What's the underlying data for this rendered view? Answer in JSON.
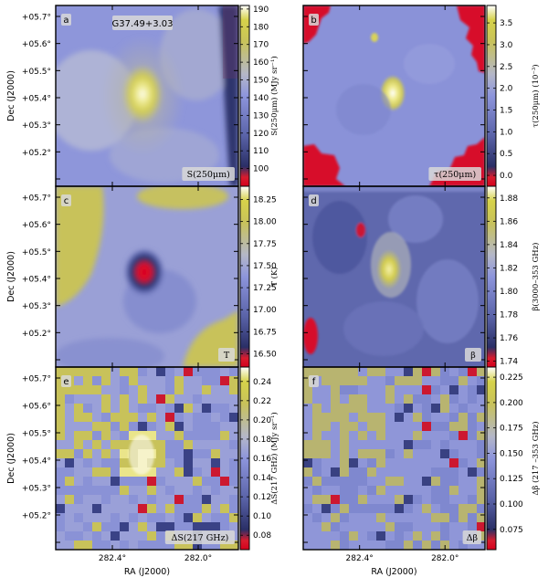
{
  "colormap": {
    "stops": [
      [
        0.0,
        "#d4001c"
      ],
      [
        0.05,
        "#d81c2e"
      ],
      [
        0.11,
        "#2a2f66"
      ],
      [
        0.28,
        "#5a63a8"
      ],
      [
        0.5,
        "#8d95dc"
      ],
      [
        0.62,
        "#b4b7c8"
      ],
      [
        0.8,
        "#c8c25a"
      ],
      [
        0.92,
        "#d6d24a"
      ],
      [
        1.0,
        "#ffffff"
      ]
    ]
  },
  "axes": {
    "x_label": "RA (J2000)",
    "y_label": "Dec (J2000)",
    "x_ticks": [
      "282.4°",
      "282.0°"
    ],
    "y_ticks": [
      "+05.7°",
      "+05.6°",
      "+05.5°",
      "+05.4°",
      "+05.3°",
      "+05.2°"
    ]
  },
  "chart_data": [
    {
      "type": "heatmap",
      "panel": "a",
      "source": "G37.49+3.03",
      "map_label": "S(250μm)",
      "colorbar_label": "S(250μm) (MJy sr⁻¹)",
      "colorbar_range": [
        90,
        192
      ],
      "ticks": [
        "190",
        "180",
        "170",
        "160",
        "150",
        "140",
        "130",
        "120",
        "110",
        "100"
      ],
      "tick_values": [
        190,
        180,
        170,
        160,
        150,
        140,
        130,
        120,
        110,
        100
      ],
      "features": {
        "peak": {
          "ra": 282.23,
          "dec": 5.45,
          "value": 190
        },
        "background": 115
      }
    },
    {
      "type": "heatmap",
      "panel": "b",
      "map_label": "τ(250μm)",
      "colorbar_label": "τ(250μm) (10⁻³)",
      "colorbar_range": [
        -0.25,
        3.9
      ],
      "ticks": [
        "3.5",
        "3.0",
        "2.5",
        "2.0",
        "1.5",
        "1.0",
        "0.5",
        "0.0"
      ],
      "tick_values": [
        3.5,
        3.0,
        2.5,
        2.0,
        1.5,
        1.0,
        0.5,
        0.0
      ],
      "features": {
        "peak": {
          "ra": 282.21,
          "dec": 5.44,
          "value": 3.6
        },
        "background": 1.5
      }
    },
    {
      "type": "heatmap",
      "panel": "c",
      "map_label": "T",
      "colorbar_label": "T (K)",
      "colorbar_range": [
        16.35,
        18.4
      ],
      "ticks": [
        "18.25",
        "18.00",
        "17.75",
        "17.50",
        "17.25",
        "17.00",
        "16.75",
        "16.50"
      ],
      "tick_values": [
        18.25,
        18.0,
        17.75,
        17.5,
        17.25,
        17.0,
        16.75,
        16.5
      ],
      "features": {
        "minimum": {
          "ra": 282.23,
          "dec": 5.43,
          "value": 16.4
        },
        "background": 17.6
      }
    },
    {
      "type": "heatmap",
      "panel": "d",
      "map_label": "β",
      "colorbar_label": "β(3000–353 GHz)",
      "colorbar_range": [
        1.735,
        1.89
      ],
      "ticks": [
        "1.88",
        "1.86",
        "1.84",
        "1.82",
        "1.80",
        "1.78",
        "1.76",
        "1.74"
      ],
      "tick_values": [
        1.88,
        1.86,
        1.84,
        1.82,
        1.8,
        1.78,
        1.76,
        1.74
      ],
      "features": {
        "peak": {
          "ra": 282.21,
          "dec": 5.43,
          "value": 1.87
        },
        "background": 1.79
      }
    },
    {
      "type": "heatmap",
      "panel": "e",
      "map_label": "ΔS(217 GHz)",
      "colorbar_label": "ΔS(217 GHz) (MJy sr⁻¹)",
      "colorbar_range": [
        0.065,
        0.255
      ],
      "ticks": [
        "0.24",
        "0.22",
        "0.20",
        "0.18",
        "0.16",
        "0.14",
        "0.12",
        "0.10",
        "0.08"
      ],
      "tick_values": [
        0.24,
        0.22,
        0.2,
        0.18,
        0.16,
        0.14,
        0.12,
        0.1,
        0.08
      ],
      "features": {
        "peak": {
          "ra": 282.23,
          "dec": 5.44,
          "value": 0.25
        },
        "background": 0.12
      }
    },
    {
      "type": "heatmap",
      "panel": "f",
      "map_label": "Δβ",
      "colorbar_label": "Δβ (217 –353 GHz)",
      "colorbar_range": [
        0.055,
        0.235
      ],
      "ticks": [
        "0.225",
        "0.200",
        "0.175",
        "0.150",
        "0.125",
        "0.100",
        "0.075"
      ],
      "tick_values": [
        0.225,
        0.2,
        0.175,
        0.15,
        0.125,
        0.1,
        0.075
      ],
      "features": {
        "peak": {
          "ra": 282.23,
          "dec": 5.44,
          "value": 0.19
        },
        "background": 0.12
      }
    }
  ]
}
